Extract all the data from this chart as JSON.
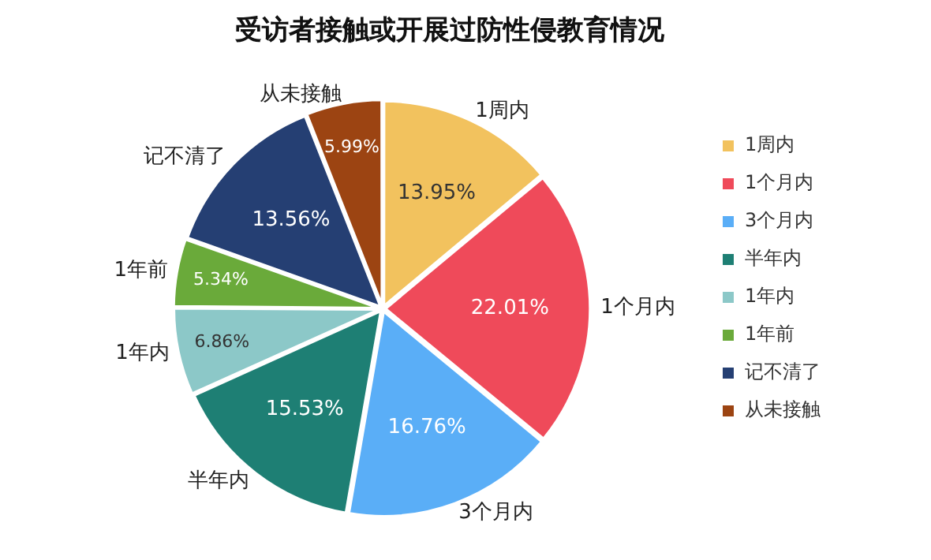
{
  "chart_data": {
    "type": "pie",
    "title": "受访者接触或开展过防性侵教育情况",
    "categories": [
      "1周内",
      "1个月内",
      "3个月内",
      "半年内",
      "1年内",
      "1年前",
      "记不清了",
      "从未接触"
    ],
    "values": [
      13.95,
      22.01,
      16.76,
      15.53,
      6.86,
      5.34,
      13.56,
      5.99
    ],
    "value_labels": [
      "13.95%",
      "22.01%",
      "16.76%",
      "15.53%",
      "6.86%",
      "5.34%",
      "13.56%",
      "5.99%"
    ],
    "colors": [
      "#f2c25e",
      "#ef4a5a",
      "#5aaef7",
      "#1e7f74",
      "#8cc8c8",
      "#6aaa3a",
      "#253f73",
      "#9c4412"
    ],
    "legend": "right"
  }
}
